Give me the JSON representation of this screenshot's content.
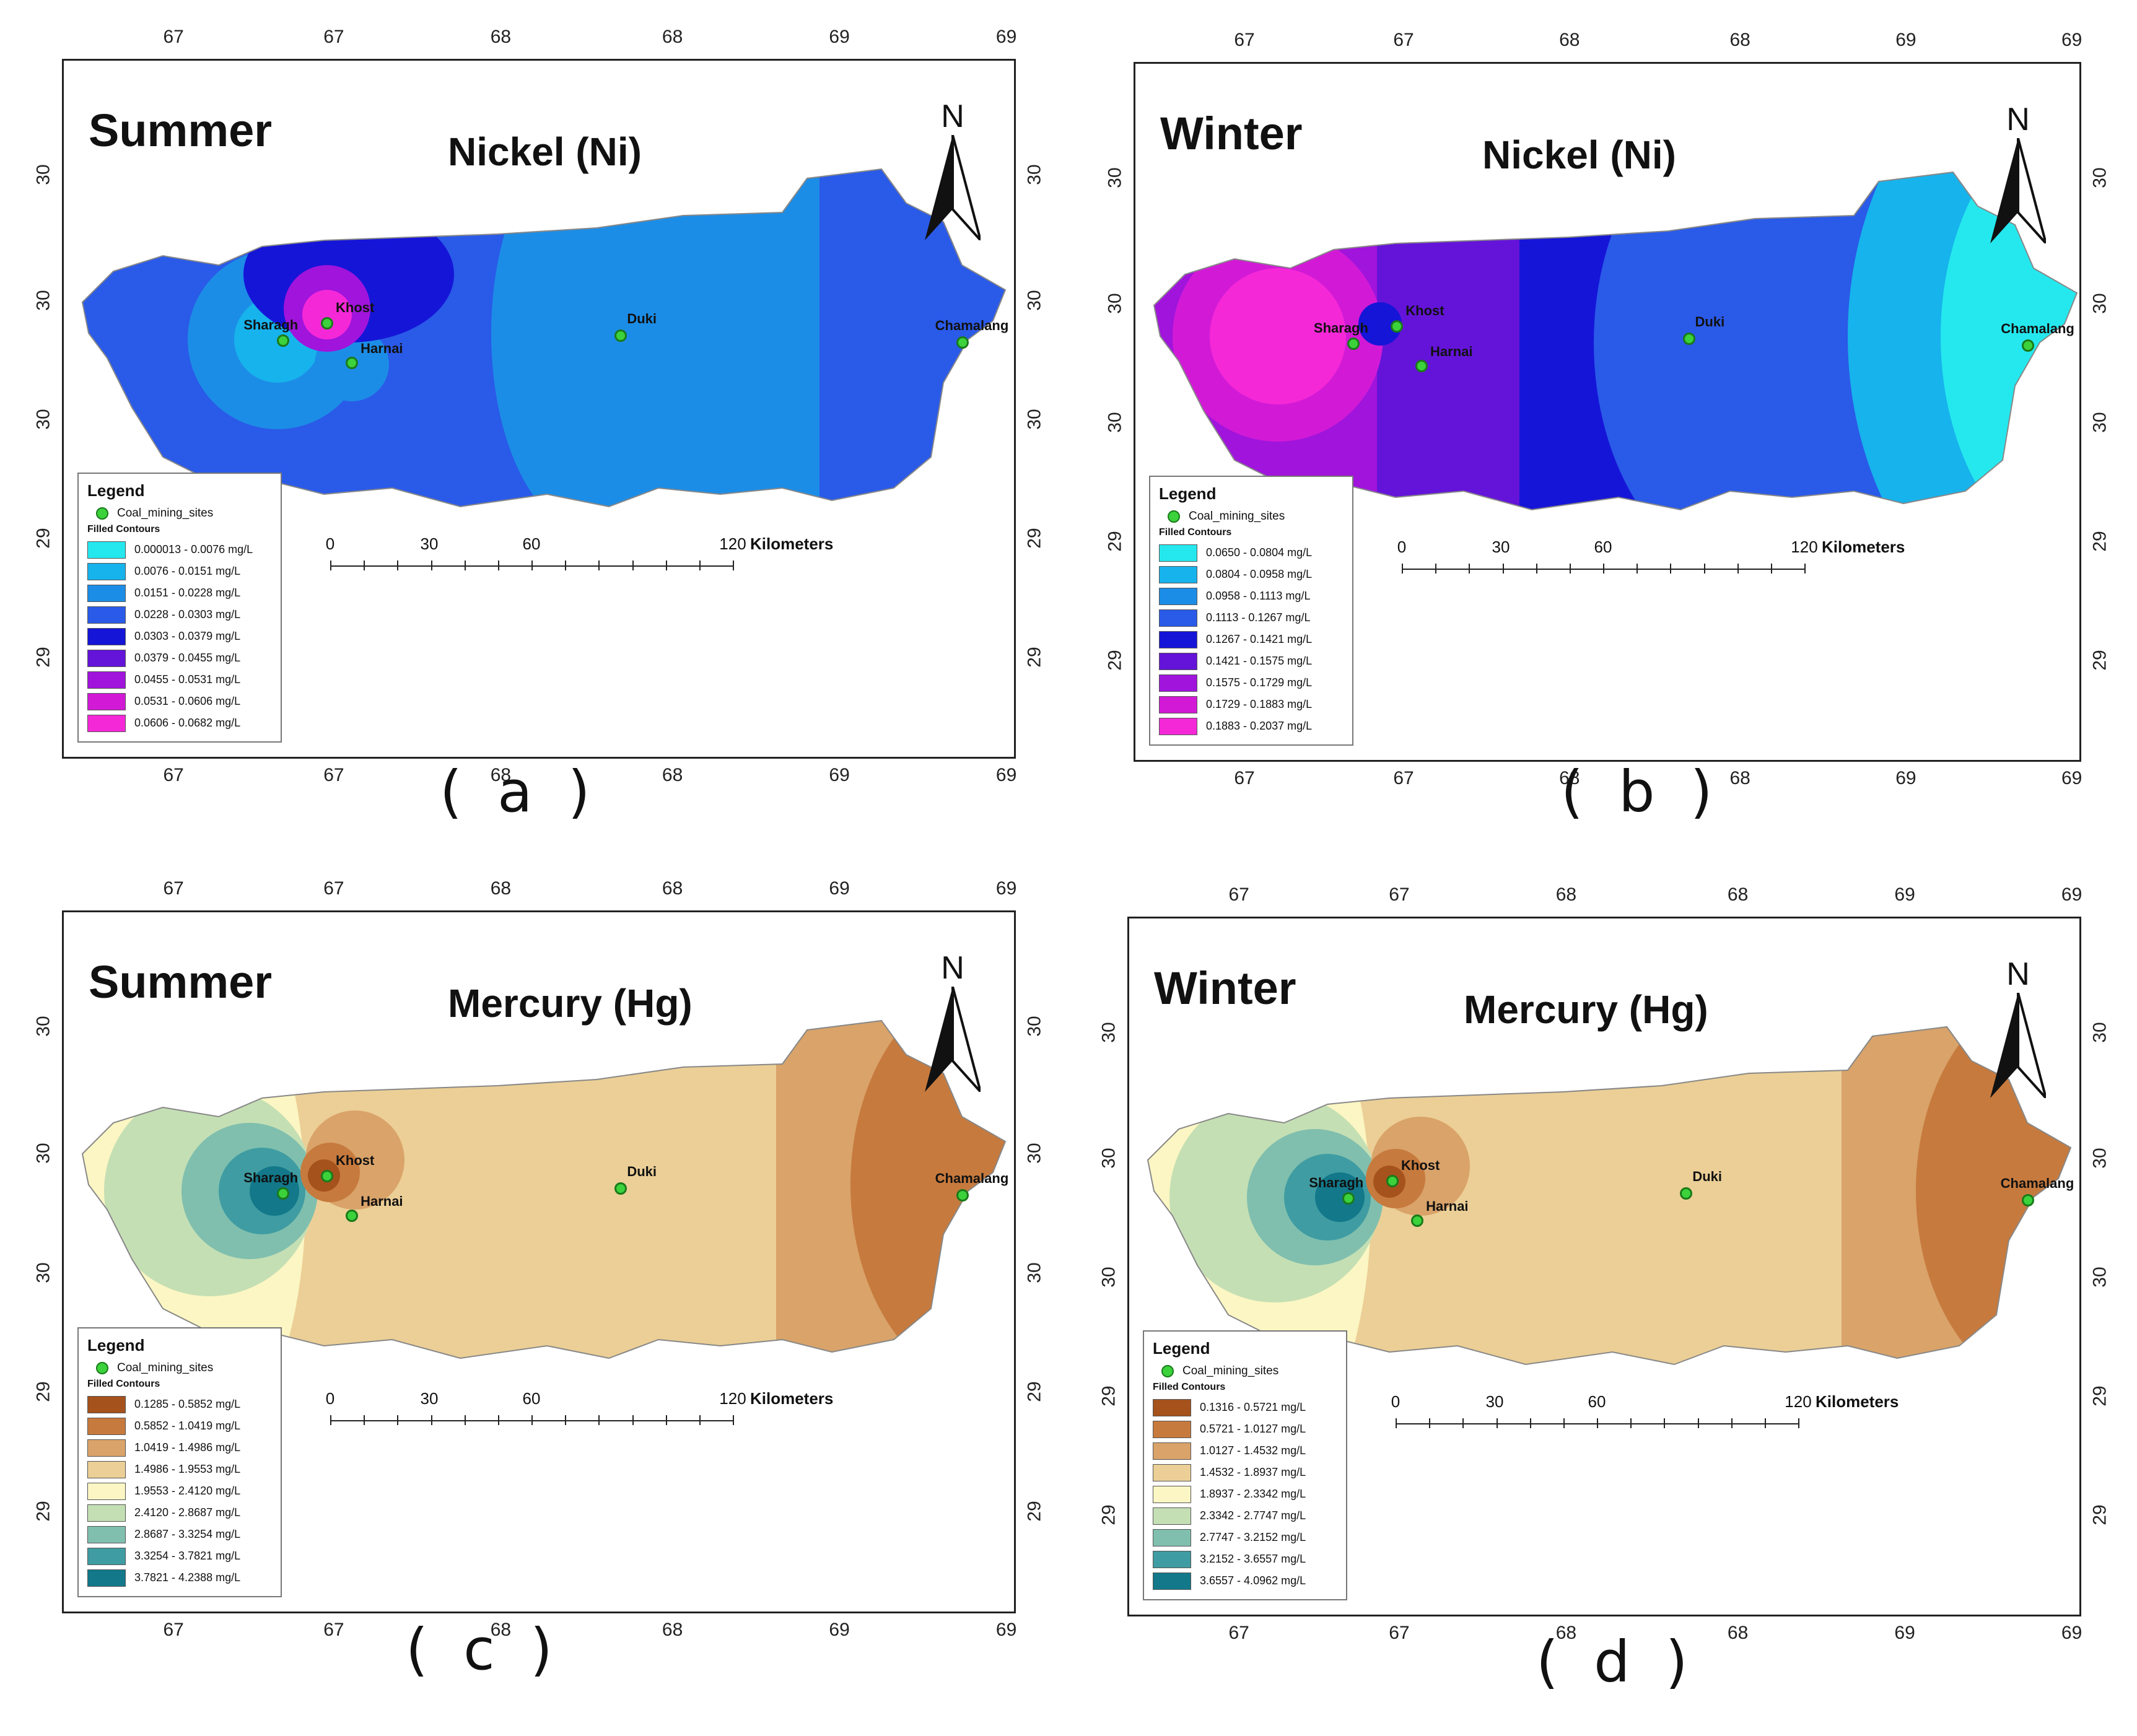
{
  "panels": [
    {
      "id": "a",
      "season": "Summer",
      "metal": "Nickel (Ni)",
      "caption": "( a )",
      "x_ticks_top": [
        "67",
        "67",
        "68",
        "68",
        "69",
        "69"
      ],
      "x_ticks_bottom": [
        "67",
        "67",
        "68",
        "68",
        "69",
        "69"
      ],
      "y_ticks_left": [
        "30",
        "30",
        "30",
        "29",
        "29"
      ],
      "y_ticks_right": [
        "30",
        "30",
        "30",
        "29",
        "29"
      ],
      "legend": {
        "title": "Legend",
        "sites_label": "Coal_mining_sites",
        "contours_label": "Filled Contours",
        "classes": [
          {
            "range": "0.000013 - 0.0076  mg/L",
            "color": "#25e8ee"
          },
          {
            "range": "0.0076 - 0.0151  mg/L",
            "color": "#17b3ec"
          },
          {
            "range": "0.0151 - 0.0228  mg/L",
            "color": "#1c8de6"
          },
          {
            "range": "0.0228 - 0.0303  mg/L",
            "color": "#2a5ae8"
          },
          {
            "range": "0.0303 - 0.0379  mg/L",
            "color": "#1515d8"
          },
          {
            "range": "0.0379 - 0.0455  mg/L",
            "color": "#6414d8"
          },
          {
            "range": "0.0455 - 0.0531  mg/L",
            "color": "#a014dc"
          },
          {
            "range": "0.0531 - 0.0606  mg/L",
            "color": "#d21ad6"
          },
          {
            "range": "0.0606 - 0.0682  mg/L",
            "color": "#f528d8"
          }
        ]
      },
      "scale": {
        "labels": [
          "0",
          "30",
          "60",
          "120"
        ],
        "unit": "Kilometers"
      },
      "sites": [
        "Sharagh",
        "Khost",
        "Harnai",
        "Duki",
        "Chamalang"
      ]
    },
    {
      "id": "b",
      "season": "Winter",
      "metal": "Nickel (Ni)",
      "caption": "( b )",
      "x_ticks_top": [
        "67",
        "67",
        "68",
        "68",
        "69",
        "69"
      ],
      "x_ticks_bottom": [
        "67",
        "67",
        "68",
        "68",
        "69",
        "69"
      ],
      "y_ticks_left": [
        "30",
        "30",
        "30",
        "29",
        "29"
      ],
      "y_ticks_right": [
        "30",
        "30",
        "30",
        "29",
        "29"
      ],
      "legend": {
        "title": "Legend",
        "sites_label": "Coal_mining_sites",
        "contours_label": "Filled Contours",
        "classes": [
          {
            "range": "0.0650 - 0.0804  mg/L",
            "color": "#25e8ee"
          },
          {
            "range": "0.0804 - 0.0958  mg/L",
            "color": "#17b3ec"
          },
          {
            "range": "0.0958 - 0.1113  mg/L",
            "color": "#1c8de6"
          },
          {
            "range": "0.1113 - 0.1267  mg/L",
            "color": "#2a5ae8"
          },
          {
            "range": "0.1267 - 0.1421  mg/L",
            "color": "#1515d8"
          },
          {
            "range": "0.1421 - 0.1575  mg/L",
            "color": "#6414d8"
          },
          {
            "range": "0.1575 - 0.1729  mg/L",
            "color": "#a014dc"
          },
          {
            "range": "0.1729 - 0.1883  mg/L",
            "color": "#d21ad6"
          },
          {
            "range": "0.1883 - 0.2037  mg/L",
            "color": "#f528d8"
          }
        ]
      },
      "scale": {
        "labels": [
          "0",
          "30",
          "60",
          "120"
        ],
        "unit": "Kilometers"
      },
      "sites": [
        "Sharagh",
        "Khost",
        "Harnai",
        "Duki",
        "Chamalang"
      ]
    },
    {
      "id": "c",
      "season": "Summer",
      "metal": "Mercury (Hg)",
      "caption": "( c )",
      "x_ticks_top": [
        "67",
        "67",
        "68",
        "68",
        "69",
        "69"
      ],
      "x_ticks_bottom": [
        "67",
        "67",
        "68",
        "68",
        "69",
        "69"
      ],
      "y_ticks_left": [
        "30",
        "30",
        "30",
        "29",
        "29"
      ],
      "y_ticks_right": [
        "30",
        "30",
        "30",
        "29",
        "29"
      ],
      "legend": {
        "title": "Legend",
        "sites_label": "Coal_mining_sites",
        "contours_label": "Filled Contours",
        "classes": [
          {
            "range": "0.1285 - 0.5852  mg/L",
            "color": "#a5521c"
          },
          {
            "range": "0.5852 - 1.0419  mg/L",
            "color": "#c77a3d"
          },
          {
            "range": "1.0419 - 1.4986  mg/L",
            "color": "#d9a36a"
          },
          {
            "range": "1.4986 - 1.9553  mg/L",
            "color": "#eccf96"
          },
          {
            "range": "1.9553 - 2.4120  mg/L",
            "color": "#fbf6c3"
          },
          {
            "range": "2.4120 - 2.8687  mg/L",
            "color": "#c5dfb4"
          },
          {
            "range": "2.8687 - 3.3254  mg/L",
            "color": "#80bfae"
          },
          {
            "range": "3.3254 - 3.7821  mg/L",
            "color": "#3f9ca2"
          },
          {
            "range": "3.7821 - 4.2388  mg/L",
            "color": "#12788a"
          }
        ]
      },
      "scale": {
        "labels": [
          "0",
          "30",
          "60",
          "120"
        ],
        "unit": "Kilometers"
      },
      "sites": [
        "Sharagh",
        "Khost",
        "Harnai",
        "Duki",
        "Chamalang"
      ]
    },
    {
      "id": "d",
      "season": "Winter",
      "metal": "Mercury (Hg)",
      "caption": "( d )",
      "x_ticks_top": [
        "67",
        "67",
        "68",
        "68",
        "69",
        "69"
      ],
      "x_ticks_bottom": [
        "67",
        "67",
        "68",
        "68",
        "69",
        "69"
      ],
      "y_ticks_left": [
        "30",
        "30",
        "30",
        "29",
        "29"
      ],
      "y_ticks_right": [
        "30",
        "30",
        "30",
        "29",
        "29"
      ],
      "legend": {
        "title": "Legend",
        "sites_label": "Coal_mining_sites",
        "contours_label": "Filled Contours",
        "classes": [
          {
            "range": "0.1316 - 0.5721  mg/L",
            "color": "#a5521c"
          },
          {
            "range": "0.5721 - 1.0127  mg/L",
            "color": "#c77a3d"
          },
          {
            "range": "1.0127 - 1.4532  mg/L",
            "color": "#d9a36a"
          },
          {
            "range": "1.4532 - 1.8937  mg/L",
            "color": "#eccf96"
          },
          {
            "range": "1.8937 - 2.3342  mg/L",
            "color": "#fbf6c3"
          },
          {
            "range": "2.3342 - 2.7747  mg/L",
            "color": "#c5dfb4"
          },
          {
            "range": "2.7747 - 3.2152  mg/L",
            "color": "#80bfae"
          },
          {
            "range": "3.2152 - 3.6557  mg/L",
            "color": "#3f9ca2"
          },
          {
            "range": "3.6557 - 4.0962  mg/L",
            "color": "#12788a"
          }
        ]
      },
      "scale": {
        "labels": [
          "0",
          "30",
          "60",
          "120"
        ],
        "unit": "Kilometers"
      },
      "sites": [
        "Sharagh",
        "Khost",
        "Harnai",
        "Duki",
        "Chamalang"
      ]
    }
  ],
  "north_letter": "N"
}
